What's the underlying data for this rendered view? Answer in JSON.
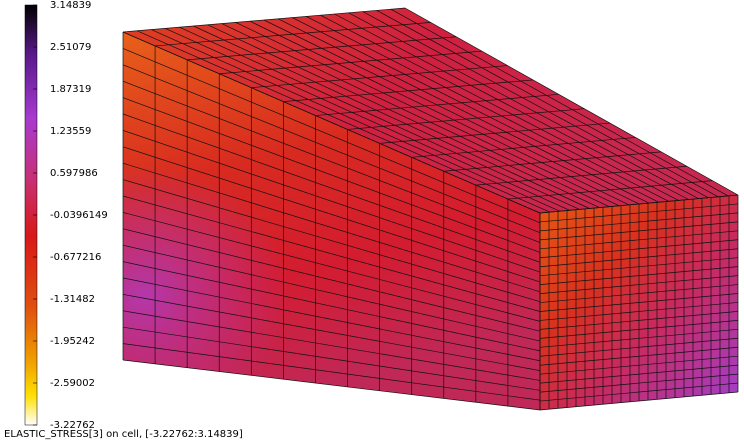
{
  "colorbar": {
    "labels": [
      "3.14839",
      "2.51079",
      "1.87319",
      "1.23559",
      "0.597986",
      "-0.0396149",
      "-0.677216",
      "-1.31482",
      "-1.95242",
      "-2.59002",
      "-3.22762"
    ]
  },
  "caption": "ELASTIC_STRESS[3] on cell, [-3.22762:3.14839]"
}
